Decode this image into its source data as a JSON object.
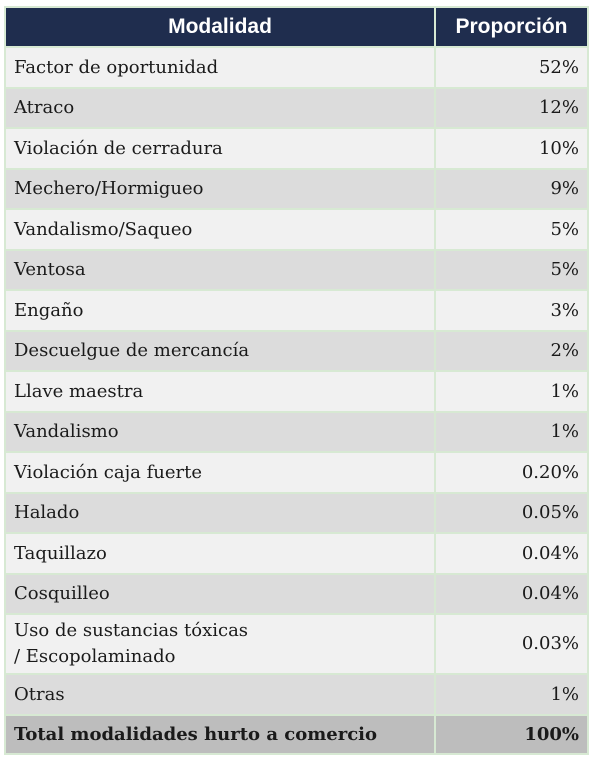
{
  "header": {
    "col1": "Modalidad",
    "col2": "Proporción"
  },
  "rows": [
    {
      "label": "Factor de oportunidad",
      "value": "52%"
    },
    {
      "label": "Atraco",
      "value": "12%"
    },
    {
      "label": "Violación de cerradura",
      "value": "10%"
    },
    {
      "label": "Mechero/Hormigueo",
      "value": "9%"
    },
    {
      "label": "Vandalismo/Saqueo",
      "value": "5%"
    },
    {
      "label": "Ventosa",
      "value": "5%"
    },
    {
      "label": "Engaño",
      "value": "3%"
    },
    {
      "label": "Descuelgue de mercancía",
      "value": "2%"
    },
    {
      "label": "Llave maestra",
      "value": "1%"
    },
    {
      "label": "Vandalismo",
      "value": "1%"
    },
    {
      "label": "Violación caja fuerte",
      "value": "0.20%"
    },
    {
      "label": "Halado",
      "value": "0.05%"
    },
    {
      "label": "Taquillazo",
      "value": "0.04%"
    },
    {
      "label": "Cosquilleo",
      "value": "0.04%"
    },
    {
      "label": "Uso de sustancias tóxicas\n/ Escopolaminado",
      "value": "0.03%"
    },
    {
      "label": "Otras",
      "value": "1%"
    }
  ],
  "total": {
    "label": "Total modalidades hurto a comercio",
    "value": "100%"
  }
}
